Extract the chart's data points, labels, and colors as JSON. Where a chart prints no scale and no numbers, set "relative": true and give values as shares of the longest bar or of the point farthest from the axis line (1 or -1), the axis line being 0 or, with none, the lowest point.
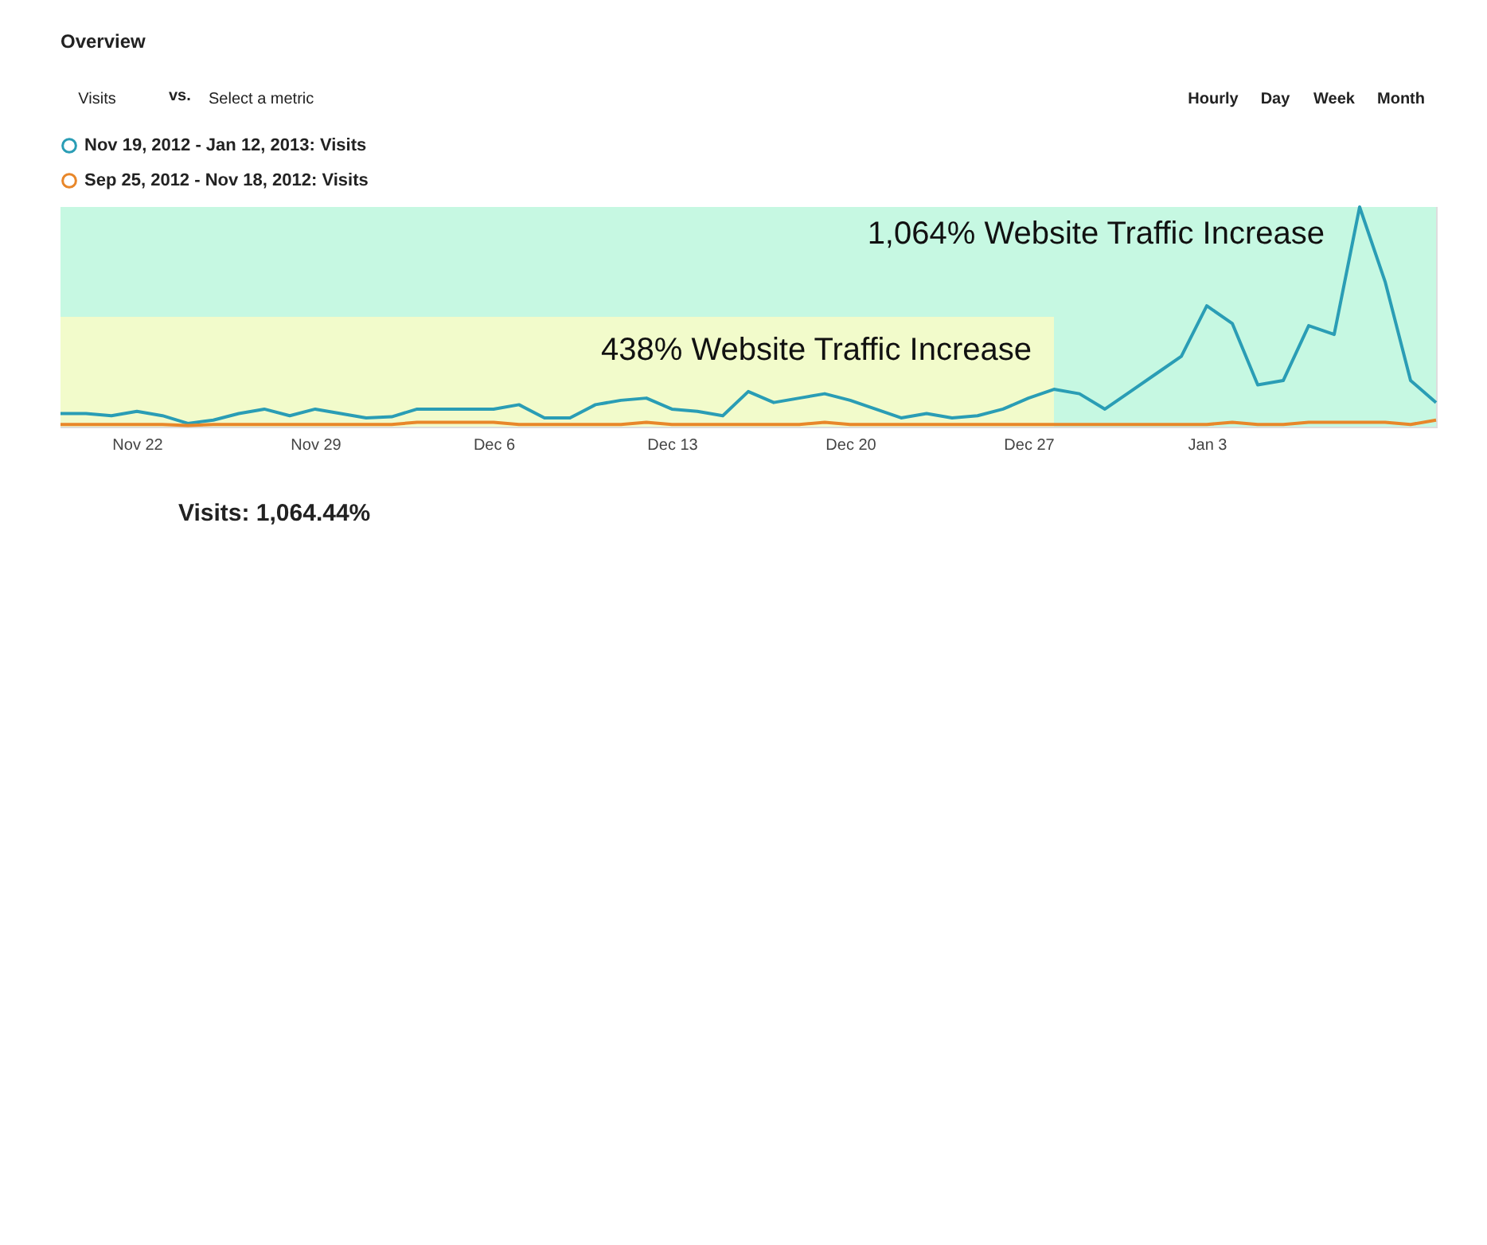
{
  "chart_data": {
    "type": "line",
    "relative": true,
    "x": [
      "2012-11-19",
      "2012-11-20",
      "2012-11-21",
      "2012-11-22",
      "2012-11-23",
      "2012-11-24",
      "2012-11-25",
      "2012-11-26",
      "2012-11-27",
      "2012-11-28",
      "2012-11-29",
      "2012-11-30",
      "2012-12-01",
      "2012-12-02",
      "2012-12-03",
      "2012-12-04",
      "2012-12-05",
      "2012-12-06",
      "2012-12-07",
      "2012-12-08",
      "2012-12-09",
      "2012-12-10",
      "2012-12-11",
      "2012-12-12",
      "2012-12-13",
      "2012-12-14",
      "2012-12-15",
      "2012-12-16",
      "2012-12-17",
      "2012-12-18",
      "2012-12-19",
      "2012-12-20",
      "2012-12-21",
      "2012-12-22",
      "2012-12-23",
      "2012-12-24",
      "2012-12-25",
      "2012-12-26",
      "2012-12-27",
      "2012-12-28",
      "2012-12-29",
      "2012-12-30",
      "2012-12-31",
      "2013-01-01",
      "2013-01-02",
      "2013-01-03",
      "2013-01-04",
      "2013-01-05",
      "2013-01-06",
      "2013-01-07",
      "2013-01-08",
      "2013-01-09",
      "2013-01-10",
      "2013-01-11",
      "2013-01-12"
    ],
    "series": [
      {
        "name": "Nov 19, 2012 - Jan 12, 2013: Visits",
        "color": "#2a9db5",
        "values": [
          0.06,
          0.06,
          0.05,
          0.07,
          0.05,
          0.015,
          0.03,
          0.06,
          0.08,
          0.05,
          0.08,
          0.06,
          0.04,
          0.045,
          0.08,
          0.08,
          0.08,
          0.08,
          0.1,
          0.04,
          0.04,
          0.1,
          0.12,
          0.13,
          0.08,
          0.07,
          0.05,
          0.16,
          0.11,
          0.13,
          0.15,
          0.12,
          0.08,
          0.04,
          0.06,
          0.04,
          0.05,
          0.08,
          0.13,
          0.17,
          0.15,
          0.08,
          0.16,
          0.24,
          0.32,
          0.55,
          0.47,
          0.19,
          0.21,
          0.46,
          0.42,
          1.0,
          0.66,
          0.21,
          0.11
        ]
      },
      {
        "name": "Sep 25, 2012 - Nov 18, 2012: Visits",
        "type": "line",
        "color": "#e8872a",
        "values": [
          0.01,
          0.01,
          0.01,
          0.01,
          0.01,
          0.005,
          0.01,
          0.01,
          0.01,
          0.01,
          0.01,
          0.01,
          0.01,
          0.01,
          0.02,
          0.02,
          0.02,
          0.02,
          0.01,
          0.01,
          0.01,
          0.01,
          0.01,
          0.02,
          0.01,
          0.01,
          0.01,
          0.01,
          0.01,
          0.01,
          0.02,
          0.01,
          0.01,
          0.01,
          0.01,
          0.01,
          0.01,
          0.01,
          0.01,
          0.01,
          0.01,
          0.01,
          0.01,
          0.01,
          0.01,
          0.01,
          0.02,
          0.01,
          0.01,
          0.02,
          0.02,
          0.02,
          0.02,
          0.01,
          0.03
        ]
      }
    ],
    "xlim": [
      "2012-11-19",
      "2013-01-12"
    ],
    "xticks": [
      {
        "value": "2012-11-22",
        "label": "Nov 22"
      },
      {
        "value": "2012-11-29",
        "label": "Nov 29"
      },
      {
        "value": "2012-12-06",
        "label": "Dec 6"
      },
      {
        "value": "2012-12-13",
        "label": "Dec 13"
      },
      {
        "value": "2012-12-20",
        "label": "Dec 20"
      },
      {
        "value": "2012-12-27",
        "label": "Dec 27"
      },
      {
        "value": "2013-01-03",
        "label": "Jan 3"
      }
    ],
    "bands": [
      {
        "axis": "x",
        "from": "2012-11-19",
        "to": "2013-01-12",
        "label": "1,064% Website Traffic Increase",
        "color": "#c6f8e2"
      },
      {
        "axis": "x",
        "from": "2012-11-19",
        "to": "2012-12-28",
        "label": "438% Website Traffic Increase",
        "color": "#f2fbcb"
      }
    ],
    "annotations": [
      "Overview",
      "Visits",
      "vs.",
      "Select a metric",
      "Hourly",
      "Day",
      "Week",
      "Month",
      "Visits: 1,064.44%"
    ],
    "legend": "top left",
    "grid": false,
    "marker": "none",
    "line_style": "solid"
  }
}
